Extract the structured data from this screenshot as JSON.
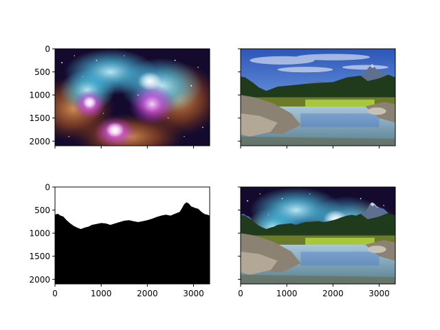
{
  "chart_data": {
    "type": "image_grid",
    "rows": 2,
    "cols": 2,
    "sharex": true,
    "sharey": true,
    "xlim": [
      0,
      3350
    ],
    "ylim": [
      2100,
      0
    ],
    "xticks": [
      0,
      1000,
      2000,
      3000
    ],
    "yticks": [
      0,
      500,
      1000,
      1500,
      2000
    ],
    "xtick_labels": [
      "0",
      "1000",
      "2000",
      "3000"
    ],
    "ytick_labels": [
      "0",
      "500",
      "1000",
      "1500",
      "2000"
    ],
    "panels": [
      {
        "id": "nebula",
        "content": "space nebula photograph",
        "show_xticklabels": false,
        "show_yticklabels": true
      },
      {
        "id": "landscape",
        "content": "mountain lake landscape photograph",
        "show_xticklabels": false,
        "show_yticklabels": false
      },
      {
        "id": "mask",
        "content": "binary sky mask (white sky, black ground)",
        "show_xticklabels": true,
        "show_yticklabels": true
      },
      {
        "id": "composite",
        "content": "landscape with nebula sky composite",
        "show_xticklabels": true,
        "show_yticklabels": false
      }
    ],
    "skyline": [
      [
        0,
        600
      ],
      [
        60,
        580
      ],
      [
        120,
        620
      ],
      [
        180,
        640
      ],
      [
        250,
        720
      ],
      [
        320,
        780
      ],
      [
        400,
        840
      ],
      [
        480,
        880
      ],
      [
        560,
        910
      ],
      [
        640,
        880
      ],
      [
        720,
        860
      ],
      [
        800,
        820
      ],
      [
        900,
        800
      ],
      [
        1000,
        780
      ],
      [
        1100,
        790
      ],
      [
        1200,
        820
      ],
      [
        1300,
        790
      ],
      [
        1400,
        760
      ],
      [
        1500,
        730
      ],
      [
        1600,
        720
      ],
      [
        1700,
        740
      ],
      [
        1800,
        760
      ],
      [
        1900,
        740
      ],
      [
        2000,
        720
      ],
      [
        2100,
        690
      ],
      [
        2200,
        650
      ],
      [
        2300,
        620
      ],
      [
        2400,
        600
      ],
      [
        2500,
        620
      ],
      [
        2600,
        580
      ],
      [
        2700,
        540
      ],
      [
        2750,
        460
      ],
      [
        2800,
        370
      ],
      [
        2850,
        330
      ],
      [
        2900,
        360
      ],
      [
        2950,
        420
      ],
      [
        3000,
        440
      ],
      [
        3050,
        460
      ],
      [
        3100,
        470
      ],
      [
        3150,
        520
      ],
      [
        3200,
        560
      ],
      [
        3250,
        590
      ],
      [
        3300,
        600
      ],
      [
        3350,
        620
      ]
    ],
    "colors": {
      "space_deep": "#140a2e",
      "nebula_blue": "#4ec3e6",
      "nebula_magenta": "#c33fd6",
      "nebula_orange": "#c86a28",
      "sky_blue": "#3e6fcf",
      "mountain": "#5f6f8e",
      "forest": "#1f3b1c",
      "rock": "#8c8274",
      "grass": "#a7c83a",
      "water": "#7fa9c4"
    }
  }
}
